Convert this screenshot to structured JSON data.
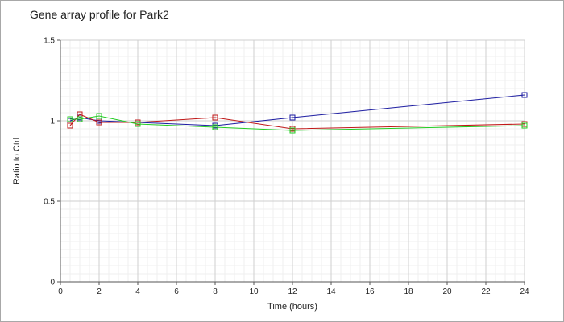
{
  "chart_data": {
    "type": "line",
    "title": "Gene array profile for Park2",
    "xlabel": "Time (hours)",
    "ylabel": "Ratio to Ctrl",
    "xlim": [
      0,
      24
    ],
    "ylim": [
      0,
      1.5
    ],
    "x_ticks": [
      "0",
      "2",
      "4",
      "6",
      "8",
      "10",
      "12",
      "14",
      "16",
      "18",
      "20",
      "22",
      "24"
    ],
    "y_ticks": [
      "0",
      "0.5",
      "1",
      "1.5"
    ],
    "grid": true,
    "legend": "none",
    "series": [
      {
        "color": "#1a1aa0",
        "marker": "open-square",
        "x": [
          0.5,
          1,
          2,
          4,
          8,
          12,
          24
        ],
        "y": [
          1.0,
          1.02,
          1.0,
          0.99,
          0.97,
          1.02,
          1.16
        ]
      },
      {
        "color": "#c01818",
        "marker": "open-square",
        "x": [
          0.5,
          1,
          2,
          4,
          8,
          12,
          24
        ],
        "y": [
          0.97,
          1.04,
          0.99,
          0.99,
          1.02,
          0.95,
          0.98
        ]
      },
      {
        "color": "#22cc22",
        "marker": "open-square",
        "x": [
          0.5,
          1,
          2,
          4,
          8,
          12,
          24
        ],
        "y": [
          1.01,
          1.01,
          1.03,
          0.98,
          0.96,
          0.94,
          0.97
        ]
      }
    ]
  }
}
